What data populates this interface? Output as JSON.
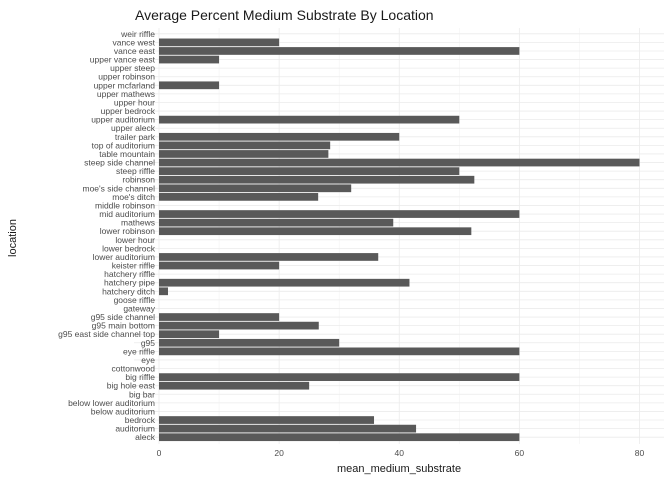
{
  "chart_data": {
    "type": "bar",
    "orientation": "horizontal",
    "title": "Average Percent Medium Substrate By Location",
    "xlabel": "mean_medium_substrate",
    "ylabel": "location",
    "xlim": [
      0,
      80
    ],
    "x_ticks": [
      0,
      20,
      40,
      60,
      80
    ],
    "bar_color": "#595959",
    "grid": true,
    "legend": "none",
    "categories": [
      "weir riffle",
      "vance west",
      "vance east",
      "upper vance east",
      "upper steep",
      "upper robinson",
      "upper mcfarland",
      "upper mathews",
      "upper hour",
      "upper bedrock",
      "upper auditorium",
      "upper aleck",
      "trailer park",
      "top of auditorium",
      "table mountain",
      "steep side channel",
      "steep riffle",
      "robinson",
      "moe's side channel",
      "moe's ditch",
      "middle robinson",
      "mid auditorium",
      "mathews",
      "lower robinson",
      "lower hour",
      "lower bedrock",
      "lower auditorium",
      "keister riffle",
      "hatchery riffle",
      "hatchery pipe",
      "hatchery ditch",
      "goose riffle",
      "gateway",
      "g95 side channel",
      "g95 main bottom",
      "g95 east side channel top",
      "g95",
      "eye riffle",
      "eye",
      "cottonwood",
      "big riffle",
      "big hole east",
      "big bar",
      "below lower auditorium",
      "below auditorium",
      "bedrock",
      "auditorium",
      "aleck"
    ],
    "values": [
      0,
      20,
      60,
      10,
      0,
      0,
      10,
      0,
      0,
      0,
      50,
      0,
      40,
      28.5,
      28.2,
      80,
      50,
      52.5,
      32,
      26.5,
      0,
      60,
      39,
      52,
      0,
      0,
      36.5,
      20,
      0,
      41.7,
      1.5,
      0,
      0,
      20,
      26.6,
      10,
      30,
      60,
      0,
      0,
      60,
      25,
      0,
      0,
      0,
      35.8,
      42.8,
      60
    ]
  }
}
